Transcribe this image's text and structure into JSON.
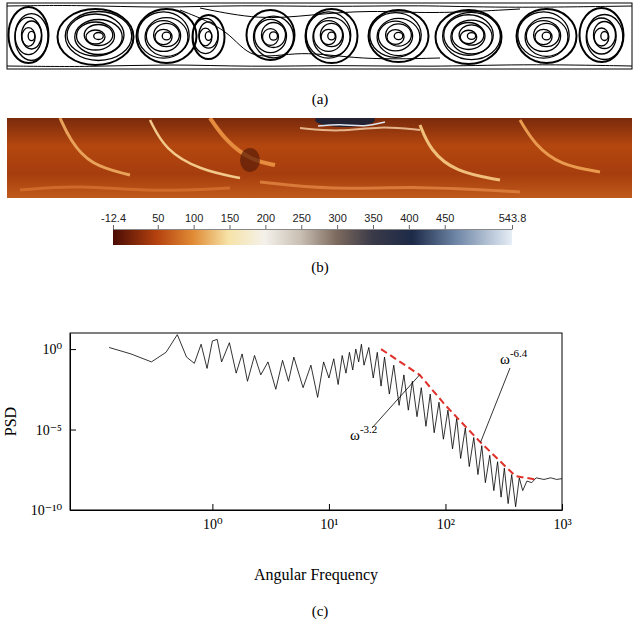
{
  "figure": {
    "panels": [
      {
        "label": "(a)",
        "type": "streamlines"
      },
      {
        "label": "(b)",
        "type": "contour",
        "colorbar": {
          "range": [
            -12.4,
            543.8
          ],
          "ticks": [
            -12.4,
            50,
            100,
            150,
            200,
            250,
            300,
            350,
            400,
            450,
            543.8
          ]
        }
      }
    ]
  },
  "chart_data": {
    "type": "line",
    "title": "(c)",
    "xlabel": "Angular Frequency",
    "ylabel": "PSD",
    "log": true,
    "xlim": [
      0.06,
      1000
    ],
    "ylim": [
      1e-10,
      10
    ],
    "xticks": [
      {
        "value": 1,
        "label": "10⁰"
      },
      {
        "value": 10,
        "label": "10¹"
      },
      {
        "value": 100,
        "label": "10²"
      },
      {
        "value": 1000,
        "label": "10³"
      }
    ],
    "yticks": [
      {
        "value": 1e-10,
        "label": "10⁻¹⁰"
      },
      {
        "value": 1e-05,
        "label": "10⁻⁵"
      },
      {
        "value": 1,
        "label": "10⁰"
      }
    ],
    "series": [
      {
        "color": "#000000",
        "line_style": "solid",
        "x": [
          0.13,
          0.2,
          0.3,
          0.4,
          0.5,
          0.6,
          0.7,
          0.8,
          0.9,
          1.0,
          1.1,
          1.2,
          1.4,
          1.6,
          1.8,
          2.0,
          2.3,
          2.6,
          3.0,
          3.5,
          4,
          4.5,
          5,
          6,
          7,
          8,
          9,
          10,
          11,
          12,
          13,
          14,
          15,
          16,
          17,
          18,
          19,
          20,
          22,
          24,
          26,
          28,
          30,
          33,
          36,
          40,
          44,
          48,
          52,
          57,
          62,
          68,
          74,
          80,
          88,
          96,
          105,
          115,
          125,
          135,
          148,
          160,
          175,
          190,
          205,
          220,
          240,
          260,
          280,
          300,
          320,
          345,
          370,
          400,
          430,
          460,
          500,
          550,
          600,
          700,
          800,
          900,
          1000
        ],
        "values": [
          1.26,
          0.5,
          0.16,
          0.63,
          7.9,
          0.32,
          0.13,
          2.0,
          0.063,
          3.2,
          4.0,
          0.16,
          2.5,
          0.032,
          0.5,
          0.01,
          0.4,
          0.025,
          0.16,
          0.0032,
          0.2,
          0.01,
          0.32,
          0.004,
          0.1,
          0.001,
          0.16,
          0.016,
          0.25,
          0.0063,
          0.4,
          0.032,
          0.63,
          0.05,
          1,
          0.16,
          2.0,
          0.1,
          1.26,
          0.016,
          0.63,
          0.005,
          0.32,
          0.0016,
          0.1,
          0.00032,
          0.025,
          0.00016,
          0.01,
          6.3e-05,
          0.004,
          1.6e-05,
          0.0016,
          6.3e-06,
          0.0005,
          2.5e-06,
          0.00016,
          6.3e-07,
          5e-05,
          1.6e-07,
          1.26e-05,
          5e-08,
          3.2e-06,
          1.6e-08,
          1e-06,
          5e-09,
          2.5e-07,
          1.6e-09,
          1e-07,
          6.3e-10,
          4e-08,
          2.5e-10,
          1.6e-08,
          1.6e-10,
          1e-08,
          1.6e-09,
          6.3e-09,
          5e-09,
          1e-08,
          7.9e-09,
          1e-08,
          7.9e-09,
          8.9e-09
        ]
      },
      {
        "color": "#e0302a",
        "line_style": "dashed",
        "x": [
          28,
          60,
          100,
          200,
          400,
          600
        ],
        "values": [
          1,
          0.025,
          0.00032,
          1.6e-06,
          1.26e-08,
          7.9e-09
        ]
      }
    ],
    "annotations": [
      {
        "text": "ω",
        "superscript": "-3.2"
      },
      {
        "text": "ω",
        "superscript": "-6.4"
      }
    ]
  }
}
